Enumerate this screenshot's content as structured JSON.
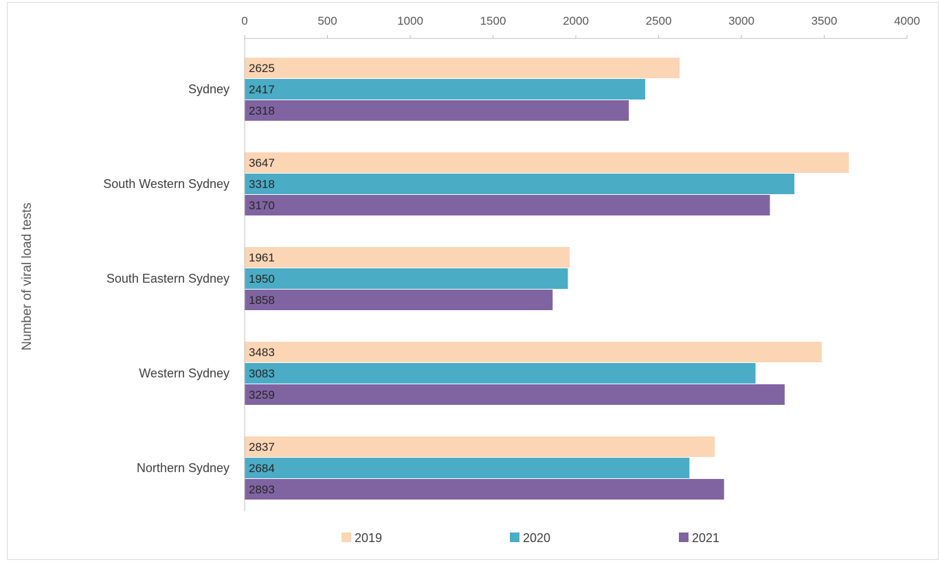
{
  "chart_data": {
    "type": "bar",
    "orientation": "horizontal",
    "categories": [
      "Sydney",
      "South Western Sydney",
      "South Eastern Sydney",
      "Western  Sydney",
      "Northern Sydney"
    ],
    "series": [
      {
        "name": "2019",
        "color": "#FCD5B5",
        "values": [
          2625,
          3647,
          1961,
          3483,
          2837
        ]
      },
      {
        "name": "2020",
        "color": "#4BACC6",
        "values": [
          2417,
          3318,
          1950,
          3083,
          2684
        ]
      },
      {
        "name": "2021",
        "color": "#8064A2",
        "values": [
          2318,
          3170,
          1858,
          3259,
          2893
        ]
      }
    ],
    "ylabel": "Number of viral load tests",
    "xlim": [
      0,
      4000
    ],
    "xticks": [
      0,
      500,
      1000,
      1500,
      2000,
      2500,
      3000,
      3500,
      4000
    ],
    "x_axis_position": "top",
    "grid": false,
    "legend": "bottom"
  }
}
